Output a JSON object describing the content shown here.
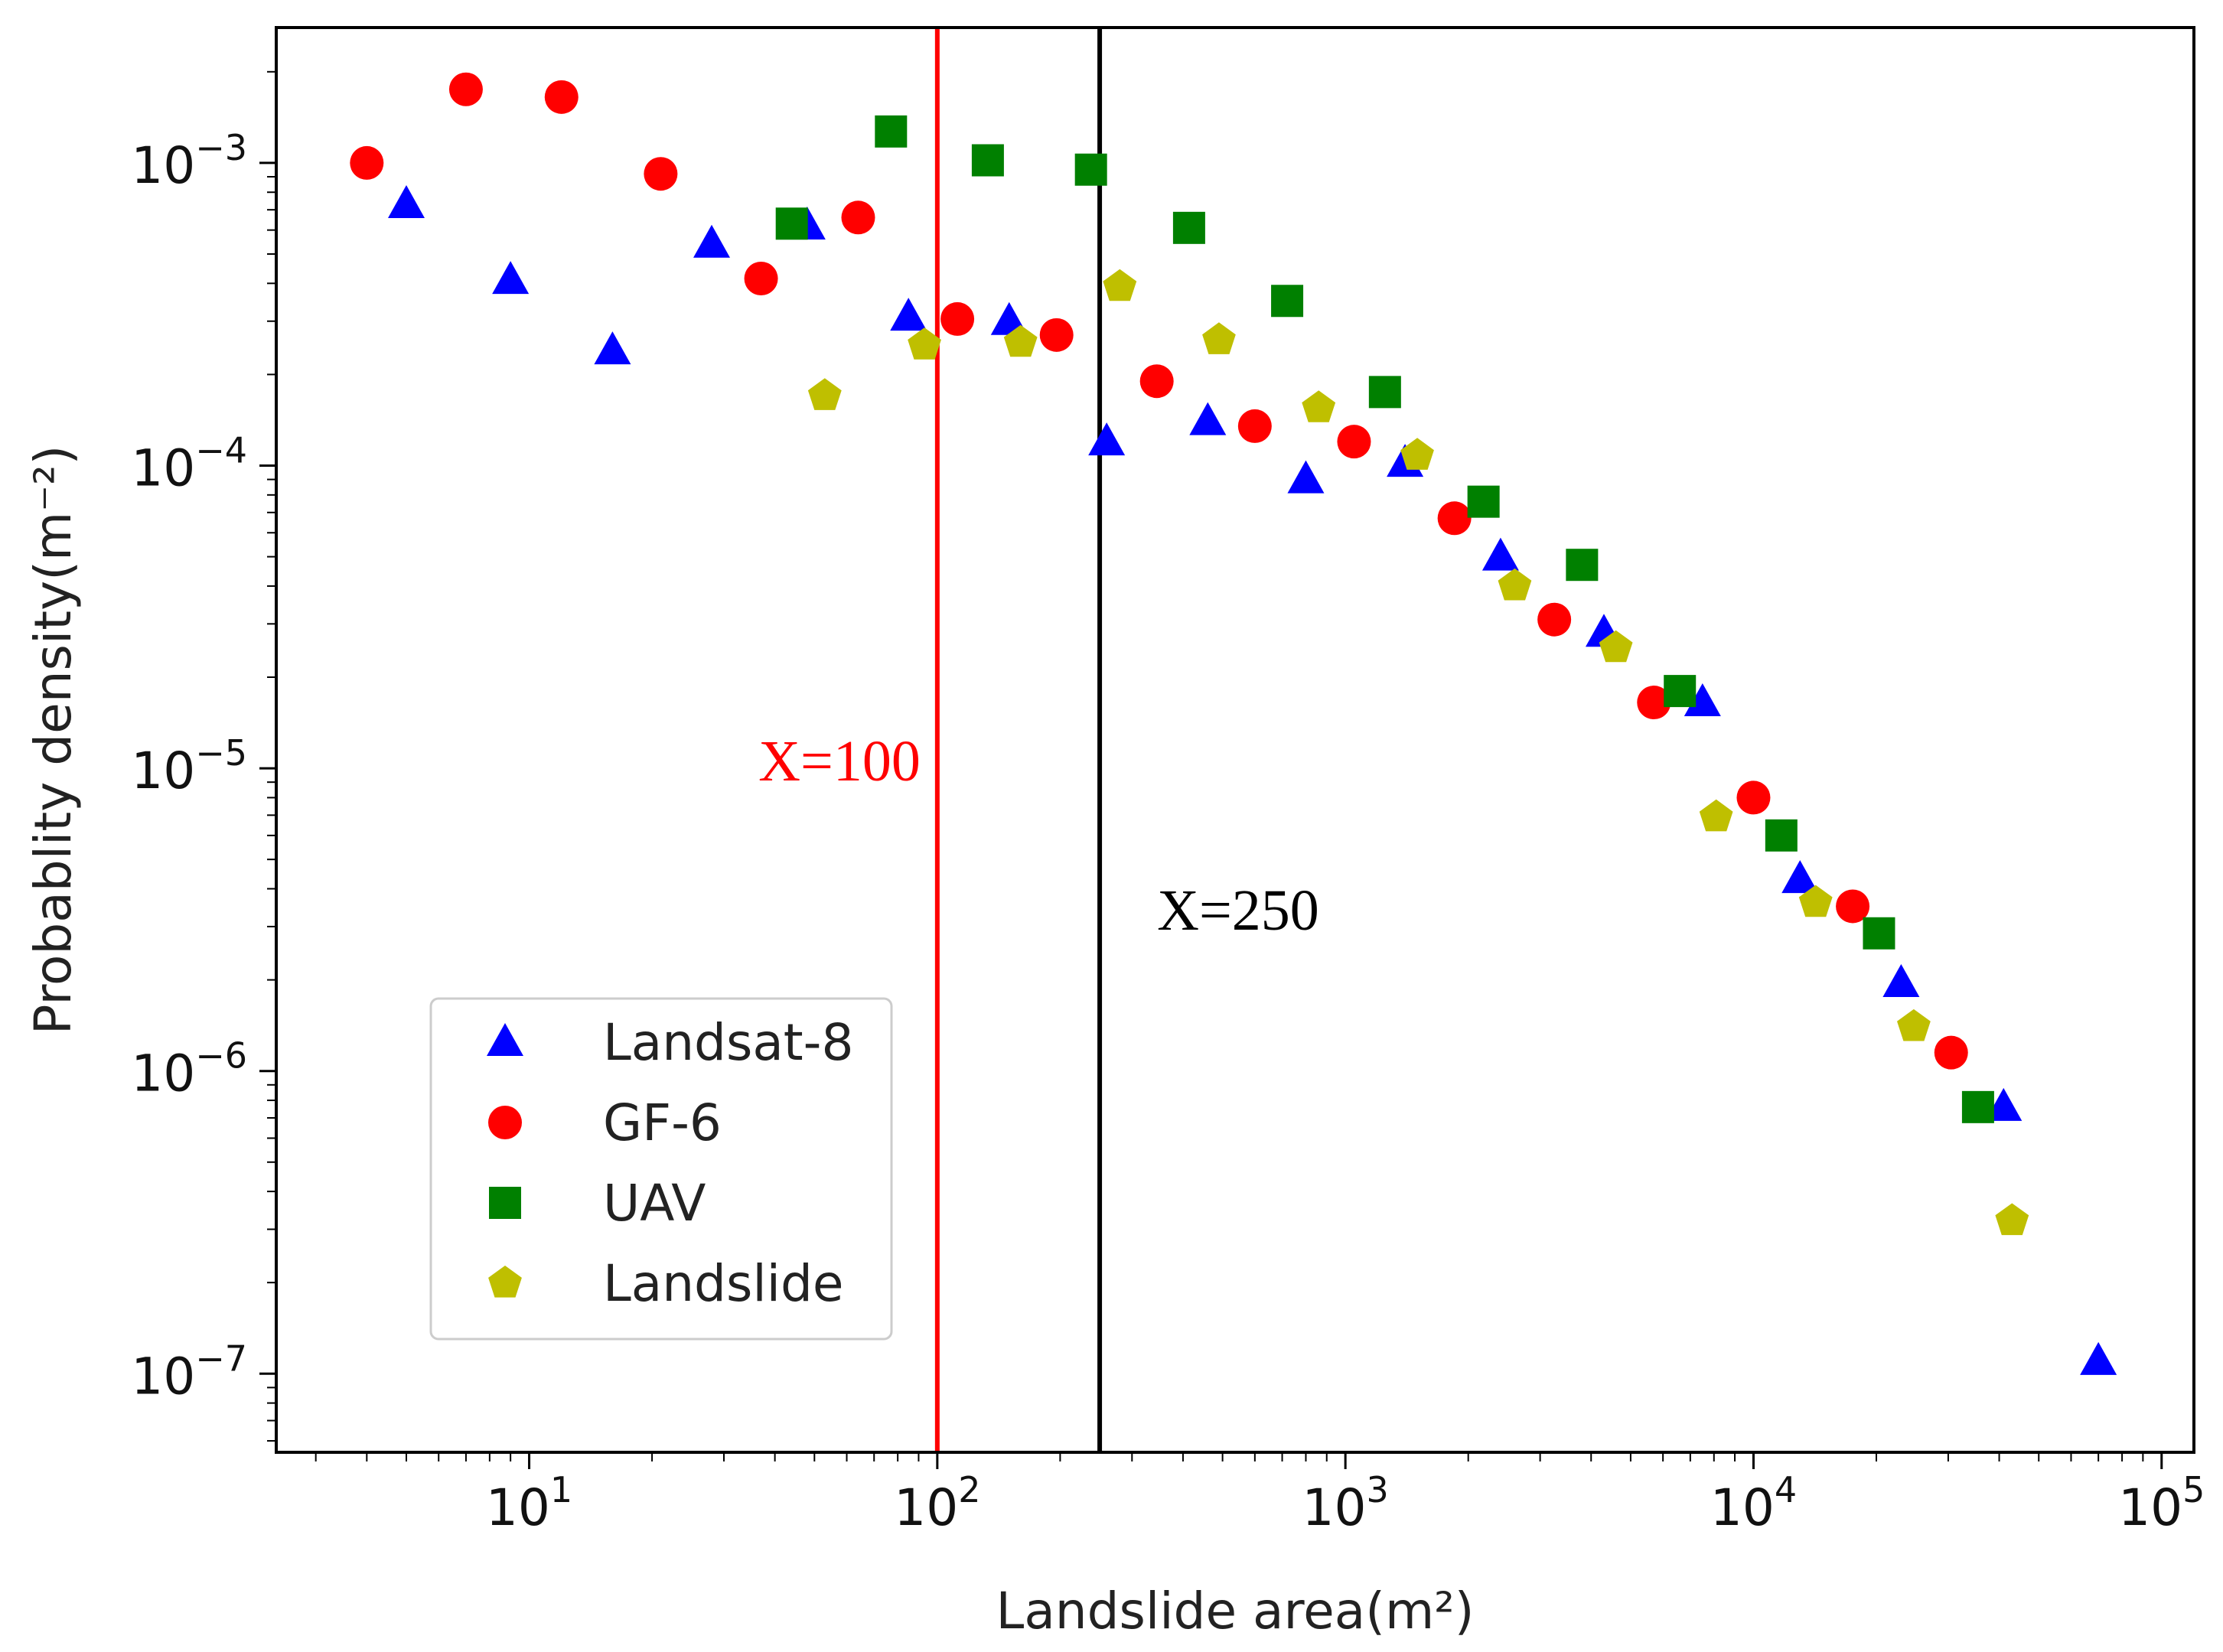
{
  "chart_data": {
    "type": "scatter",
    "xscale": "log",
    "yscale": "log",
    "xlabel": "Landslide area(m²)",
    "ylabel": "Probablity density(m⁻²)",
    "xlim": [
      2.4,
      120000
    ],
    "ylim": [
      5.5e-08,
      0.0028
    ],
    "xticks": [
      {
        "value": 10,
        "base": "10",
        "exp": "1"
      },
      {
        "value": 100,
        "base": "10",
        "exp": "2"
      },
      {
        "value": 1000,
        "base": "10",
        "exp": "3"
      },
      {
        "value": 10000,
        "base": "10",
        "exp": "4"
      },
      {
        "value": 100000,
        "base": "10",
        "exp": "5"
      }
    ],
    "yticks": [
      {
        "value": 0.001,
        "base": "10",
        "exp": "−3"
      },
      {
        "value": 0.0001,
        "base": "10",
        "exp": "−4"
      },
      {
        "value": 1e-05,
        "base": "10",
        "exp": "−5"
      },
      {
        "value": 1e-06,
        "base": "10",
        "exp": "−6"
      },
      {
        "value": 1e-07,
        "base": "10",
        "exp": "−7"
      }
    ],
    "reference_lines": [
      {
        "x": 100,
        "label": "X=100",
        "color": "#ff0000"
      },
      {
        "x": 250,
        "label": "X=250",
        "color": "#000000"
      }
    ],
    "series": [
      {
        "name": "Landsat-8",
        "marker": "triangle",
        "color": "#0000ff",
        "x": [
          5,
          9,
          16,
          28,
          48,
          85,
          150,
          260,
          460,
          800,
          1400,
          2400,
          4300,
          7500,
          13000,
          23000,
          41000,
          70000
        ],
        "y": [
          0.00073,
          0.00041,
          0.00024,
          0.00054,
          0.00062,
          0.00031,
          0.0003,
          0.00012,
          0.00014,
          9e-05,
          0.000102,
          5e-05,
          2.8e-05,
          1.65e-05,
          4.3e-06,
          1.95e-06,
          7.6e-07,
          1.1e-07
        ]
      },
      {
        "name": "GF-6",
        "marker": "circle",
        "color": "#ff0000",
        "x": [
          4,
          7,
          12,
          21,
          37,
          64,
          112,
          196,
          345,
          600,
          1050,
          1850,
          3250,
          5700,
          10000,
          17500,
          30500
        ],
        "y": [
          0.001,
          0.00175,
          0.00165,
          0.00092,
          0.000415,
          0.00066,
          0.000305,
          0.00027,
          0.00019,
          0.000135,
          0.00012,
          6.7e-05,
          3.1e-05,
          1.65e-05,
          8e-06,
          3.5e-06,
          1.15e-06
        ]
      },
      {
        "name": "UAV",
        "marker": "square",
        "color": "#008000",
        "x": [
          44,
          77,
          133,
          238,
          414,
          720,
          1250,
          2180,
          3800,
          6600,
          11700,
          20300,
          35500
        ],
        "y": [
          0.00063,
          0.00127,
          0.00102,
          0.00095,
          0.00061,
          0.00035,
          0.000175,
          7.6e-05,
          4.7e-05,
          1.8e-05,
          6e-06,
          2.85e-06,
          7.6e-07
        ]
      },
      {
        "name": "Landslide",
        "marker": "pentagon",
        "color": "#bfbf00",
        "x": [
          53,
          93,
          160,
          280,
          490,
          860,
          1500,
          2600,
          4600,
          8100,
          14200,
          24700,
          43000
        ],
        "y": [
          0.00017,
          0.00025,
          0.000255,
          0.00039,
          0.00026,
          0.000155,
          0.000108,
          4e-05,
          2.5e-05,
          6.9e-06,
          3.6e-06,
          1.4e-06,
          3.2e-07
        ]
      }
    ],
    "legend": {
      "position": "lower-left",
      "entries": [
        "Landsat-8",
        "GF-6",
        "UAV",
        "Landslide"
      ]
    }
  }
}
